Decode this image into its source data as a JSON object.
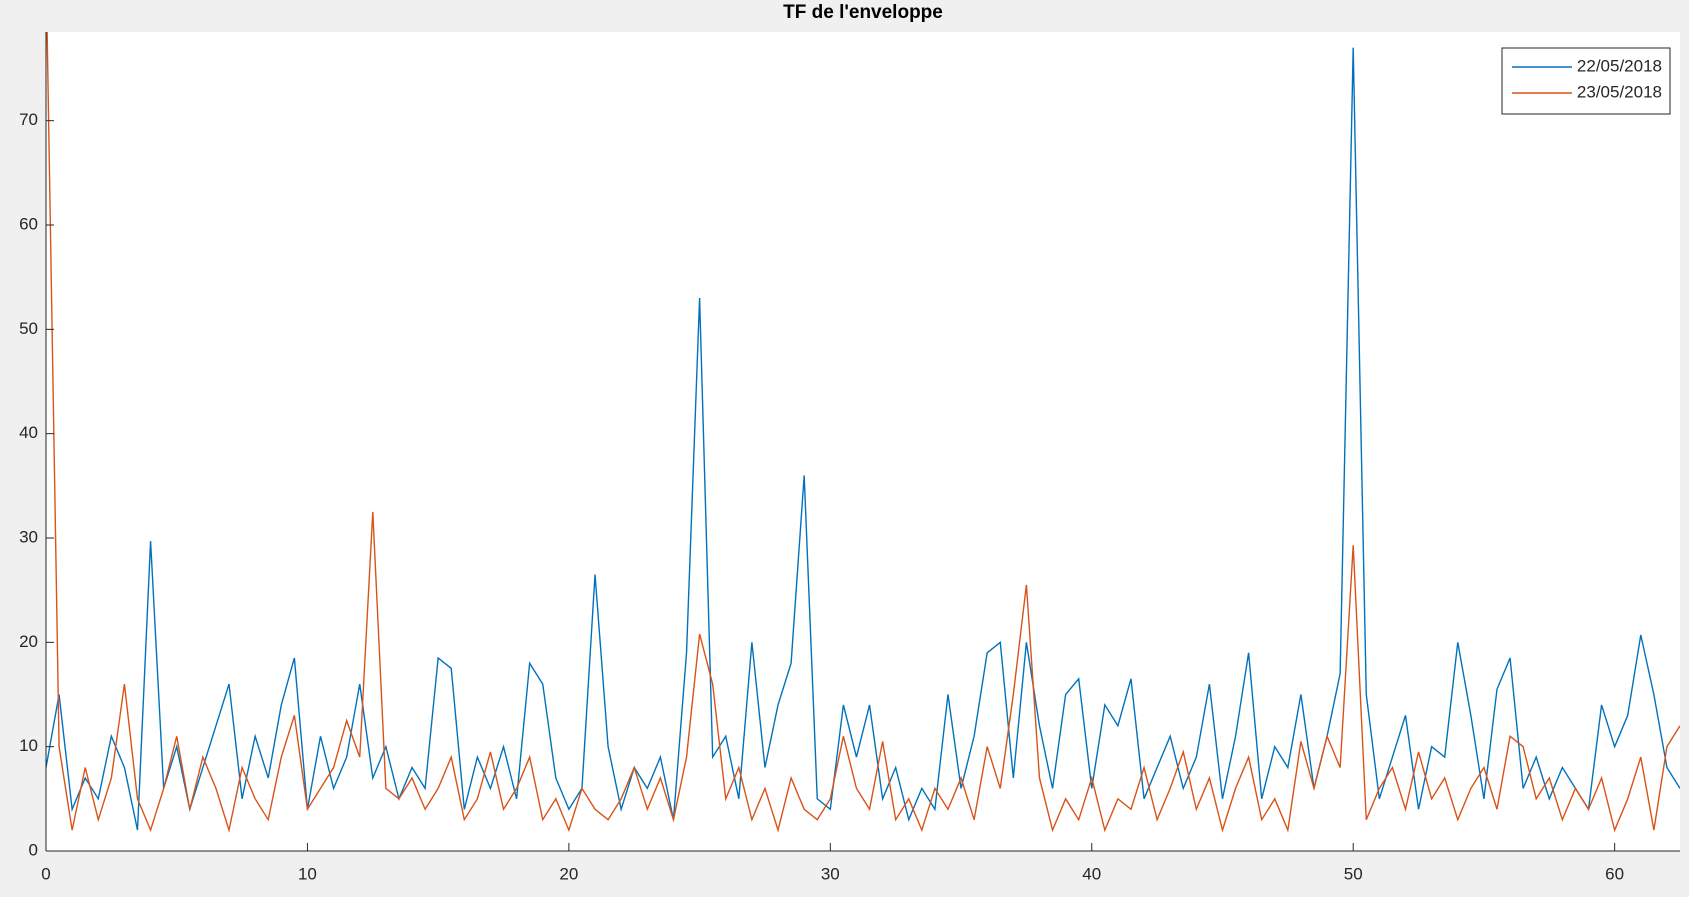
{
  "chart_data": {
    "type": "line",
    "title": "TF de l'enveloppe",
    "x": [
      0,
      0.5,
      1,
      1.5,
      2,
      2.5,
      3,
      3.5,
      4,
      4.5,
      5,
      5.5,
      6,
      6.5,
      7,
      7.5,
      8,
      8.5,
      9,
      9.5,
      10,
      10.5,
      11,
      11.5,
      12,
      12.5,
      13,
      13.5,
      14,
      14.5,
      15,
      15.5,
      16,
      16.5,
      17,
      17.5,
      18,
      18.5,
      19,
      19.5,
      20,
      20.5,
      21,
      21.5,
      22,
      22.5,
      23,
      23.5,
      24,
      24.5,
      25,
      25.5,
      26,
      26.5,
      27,
      27.5,
      28,
      28.5,
      29,
      29.5,
      30,
      30.5,
      31,
      31.5,
      32,
      32.5,
      33,
      33.5,
      34,
      34.5,
      35,
      35.5,
      36,
      36.5,
      37,
      37.5,
      38,
      38.5,
      39,
      39.5,
      40,
      40.5,
      41,
      41.5,
      42,
      42.5,
      43,
      43.5,
      44,
      44.5,
      45,
      45.5,
      46,
      46.5,
      47,
      47.5,
      48,
      48.5,
      49,
      49.5,
      50,
      50.5,
      51,
      51.5,
      52,
      52.5,
      53,
      53.5,
      54,
      54.5,
      55,
      55.5,
      56,
      56.5,
      57,
      57.5,
      58,
      58.5,
      59,
      59.5,
      60,
      60.5,
      61,
      61.5,
      62,
      62.5
    ],
    "series": [
      {
        "name": "22/05/2018",
        "color": "#0072bd",
        "values": [
          8,
          15,
          4,
          7,
          5,
          11,
          8,
          2,
          29.7,
          6,
          10,
          4,
          8,
          12,
          16,
          5,
          11,
          7,
          14,
          18.5,
          4,
          11,
          6,
          9,
          16,
          7,
          10,
          5,
          8,
          6,
          18.5,
          17.5,
          4,
          9,
          6,
          10,
          5,
          18,
          16,
          7,
          4,
          6,
          26.5,
          10,
          4,
          8,
          6,
          9,
          3,
          19,
          53,
          9,
          11,
          5,
          20,
          8,
          14,
          18,
          36,
          5,
          4,
          14,
          9,
          14,
          5,
          8,
          3,
          6,
          4,
          15,
          6,
          11,
          19,
          20,
          7,
          20,
          12,
          6,
          15,
          16.5,
          6,
          14,
          12,
          16.5,
          5,
          8,
          11,
          6,
          9,
          16,
          5,
          11,
          19,
          5,
          10,
          8,
          15,
          6,
          11,
          17,
          77,
          15,
          5,
          9,
          13,
          4,
          10,
          9,
          20,
          13,
          5,
          15.5,
          18.5,
          6,
          9,
          5,
          8,
          6,
          4,
          14,
          10,
          13,
          20.7,
          15,
          8,
          6
        ]
      },
      {
        "name": "23/05/2018",
        "color": "#d95319",
        "values": [
          85,
          10,
          2,
          8,
          3,
          7,
          16,
          5,
          2,
          6,
          11,
          4,
          9,
          6,
          2,
          8,
          5,
          3,
          9,
          13,
          4,
          6,
          8,
          12.5,
          9,
          32.5,
          6,
          5,
          7,
          4,
          6,
          9,
          3,
          5,
          9.5,
          4,
          6,
          9,
          3,
          5,
          2,
          6,
          4,
          3,
          5,
          8,
          4,
          7,
          3,
          9,
          20.8,
          16,
          5,
          8,
          3,
          6,
          2,
          7,
          4,
          3,
          5,
          11,
          6,
          4,
          10.5,
          3,
          5,
          2,
          6,
          4,
          7,
          3,
          10,
          6,
          15,
          25.5,
          7,
          2,
          5,
          3,
          7,
          2,
          5,
          4,
          8,
          3,
          6,
          9.5,
          4,
          7,
          2,
          6,
          9,
          3,
          5,
          2,
          10.5,
          6,
          11,
          8,
          29.3,
          3,
          6,
          8,
          4,
          9.5,
          5,
          7,
          3,
          6,
          8,
          4,
          11,
          10,
          5,
          7,
          3,
          6,
          4,
          7,
          2,
          5,
          9,
          2,
          10,
          12
        ]
      }
    ],
    "xlim": [
      0,
      62.5
    ],
    "ylim": [
      0,
      78.5
    ],
    "xticks": [
      0,
      10,
      20,
      30,
      40,
      50,
      60
    ],
    "yticks": [
      0,
      10,
      20,
      30,
      40,
      50,
      60,
      70
    ],
    "legend": "upper right"
  }
}
